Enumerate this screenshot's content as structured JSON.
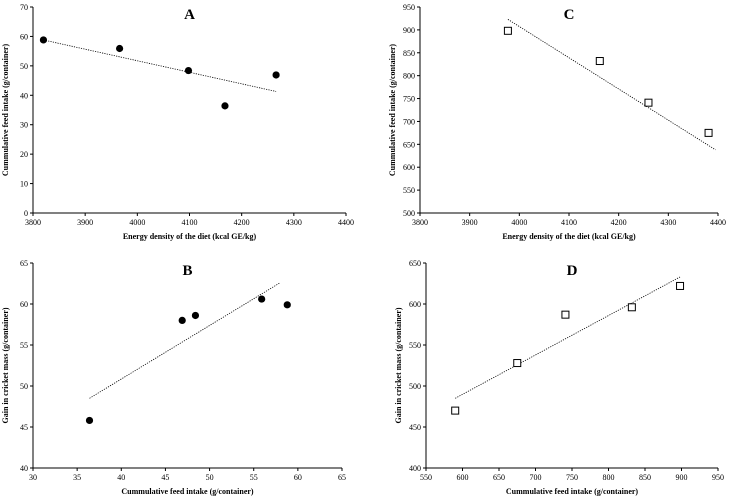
{
  "chart_data": [
    {
      "id": "A",
      "type": "scatter",
      "title": "A",
      "xlabel": "Energy density of the diet (kcal GE/kg)",
      "ylabel": "Cummulative feed intake (g/container)",
      "xlim": [
        3800,
        4400
      ],
      "ylim": [
        0,
        70
      ],
      "xticks": [
        3800,
        3900,
        4000,
        4100,
        4200,
        4300,
        4400
      ],
      "yticks": [
        0,
        10,
        20,
        30,
        40,
        50,
        60,
        70
      ],
      "marker": "filled-circle",
      "points": [
        {
          "x": 3820,
          "y": 58.8
        },
        {
          "x": 3966,
          "y": 55.9
        },
        {
          "x": 4098,
          "y": 48.4
        },
        {
          "x": 4168,
          "y": 36.4
        },
        {
          "x": 4266,
          "y": 46.9
        }
      ],
      "trendline": [
        [
          3820,
          58.8
        ],
        [
          4266,
          41.3
        ]
      ]
    },
    {
      "id": "C",
      "type": "scatter",
      "title": "C",
      "xlabel": "Energy density of the diet (kcal GE/kg)",
      "ylabel": "Cummulative feed intake (g/container)",
      "xlim": [
        3800,
        4400
      ],
      "ylim": [
        500,
        950
      ],
      "xticks": [
        3800,
        3900,
        4000,
        4100,
        4200,
        4300,
        4400
      ],
      "yticks": [
        500,
        550,
        600,
        650,
        700,
        750,
        800,
        850,
        900,
        950
      ],
      "marker": "open-square",
      "points": [
        {
          "x": 3977,
          "y": 898
        },
        {
          "x": 4162,
          "y": 832
        },
        {
          "x": 4260,
          "y": 741
        },
        {
          "x": 4381,
          "y": 675
        }
      ],
      "trendline": [
        [
          3977,
          923
        ],
        [
          4395,
          638
        ]
      ]
    },
    {
      "id": "B",
      "type": "scatter",
      "title": "B",
      "xlabel": "Cummulative feed intake (g/container)",
      "ylabel": "Gain in cricket mass (g/container)",
      "xlim": [
        30,
        65
      ],
      "ylim": [
        40,
        65
      ],
      "xticks": [
        30,
        35,
        40,
        45,
        50,
        55,
        60,
        65
      ],
      "yticks": [
        40,
        45,
        50,
        55,
        60,
        65
      ],
      "marker": "filled-circle",
      "points": [
        {
          "x": 36.4,
          "y": 45.8
        },
        {
          "x": 46.9,
          "y": 58.0
        },
        {
          "x": 48.4,
          "y": 58.6
        },
        {
          "x": 55.9,
          "y": 60.6
        },
        {
          "x": 58.8,
          "y": 59.9
        }
      ],
      "trendline": [
        [
          36.4,
          48.5
        ],
        [
          58.0,
          62.6
        ]
      ]
    },
    {
      "id": "D",
      "type": "scatter",
      "title": "D",
      "xlabel": "Cummulative feed intake (g/container)",
      "ylabel": "Gain in cricket mass (g/container)",
      "xlim": [
        550,
        950
      ],
      "ylim": [
        400,
        650
      ],
      "xticks": [
        550,
        600,
        650,
        700,
        750,
        800,
        850,
        900,
        950
      ],
      "yticks": [
        400,
        450,
        500,
        550,
        600,
        650
      ],
      "marker": "open-square",
      "points": [
        {
          "x": 590,
          "y": 470
        },
        {
          "x": 675,
          "y": 528
        },
        {
          "x": 741,
          "y": 587
        },
        {
          "x": 832,
          "y": 596
        },
        {
          "x": 898,
          "y": 622
        }
      ],
      "trendline": [
        [
          590,
          485
        ],
        [
          898,
          633
        ]
      ]
    }
  ]
}
